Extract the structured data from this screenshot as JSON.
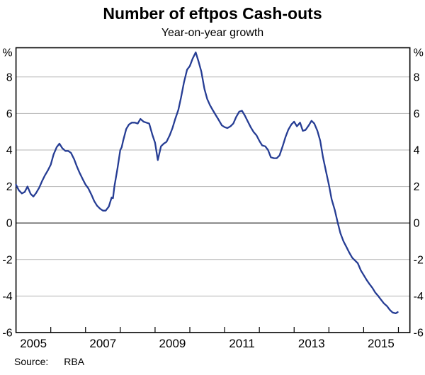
{
  "header": {
    "title": "Number of eftpos Cash-outs",
    "subtitle": "Year-on-year growth"
  },
  "footer": {
    "source_label": "Source:",
    "source_value": "RBA"
  },
  "chart_data": {
    "type": "line",
    "title": "Number of eftpos Cash-outs",
    "subtitle": "Year-on-year growth",
    "unit_label_left": "%",
    "unit_label_right": "%",
    "xlabel": "",
    "ylabel": "%",
    "x_range_years": [
      2005.0,
      2016.33
    ],
    "ylim": [
      -6,
      9.6
    ],
    "grid": true,
    "legend": "none",
    "colors": {
      "line": "#263D94",
      "gridline": "#b3b3b3",
      "zero_line": "#4d4d4d",
      "border": "#000000",
      "text": "#000000"
    },
    "yticks": [
      8,
      6,
      4,
      2,
      0,
      -2,
      -4,
      -6
    ],
    "gridline_values": [
      8,
      6,
      4,
      2,
      -2,
      -4
    ],
    "year_ticks": [
      2006,
      2007,
      2008,
      2009,
      2010,
      2011,
      2012,
      2013,
      2014,
      2015,
      2016
    ],
    "xtick_labels": [
      "2005",
      "2007",
      "2009",
      "2011",
      "2013",
      "2015"
    ],
    "xtick_label_positions": [
      2005.5,
      2007.5,
      2009.5,
      2011.5,
      2013.5,
      2015.5
    ],
    "series": [
      {
        "name": "eftpos cash-outs year-on-year growth (%)",
        "points": [
          [
            2005.0,
            2.1
          ],
          [
            2005.08,
            1.8
          ],
          [
            2005.17,
            1.62
          ],
          [
            2005.25,
            1.7
          ],
          [
            2005.33,
            2.0
          ],
          [
            2005.42,
            1.6
          ],
          [
            2005.5,
            1.45
          ],
          [
            2005.58,
            1.65
          ],
          [
            2005.67,
            1.95
          ],
          [
            2005.75,
            2.3
          ],
          [
            2005.83,
            2.6
          ],
          [
            2005.92,
            2.9
          ],
          [
            2006.0,
            3.2
          ],
          [
            2006.08,
            3.75
          ],
          [
            2006.17,
            4.15
          ],
          [
            2006.25,
            4.35
          ],
          [
            2006.33,
            4.1
          ],
          [
            2006.42,
            3.95
          ],
          [
            2006.5,
            3.95
          ],
          [
            2006.58,
            3.85
          ],
          [
            2006.67,
            3.5
          ],
          [
            2006.75,
            3.1
          ],
          [
            2006.83,
            2.75
          ],
          [
            2006.92,
            2.4
          ],
          [
            2007.0,
            2.1
          ],
          [
            2007.08,
            1.9
          ],
          [
            2007.17,
            1.55
          ],
          [
            2007.25,
            1.2
          ],
          [
            2007.33,
            0.95
          ],
          [
            2007.42,
            0.78
          ],
          [
            2007.5,
            0.68
          ],
          [
            2007.58,
            0.68
          ],
          [
            2007.67,
            0.9
          ],
          [
            2007.75,
            1.4
          ],
          [
            2007.79,
            1.36
          ],
          [
            2007.83,
            2.0
          ],
          [
            2007.92,
            3.0
          ],
          [
            2008.0,
            4.0
          ],
          [
            2008.04,
            4.15
          ],
          [
            2008.08,
            4.5
          ],
          [
            2008.17,
            5.15
          ],
          [
            2008.25,
            5.4
          ],
          [
            2008.33,
            5.5
          ],
          [
            2008.42,
            5.5
          ],
          [
            2008.5,
            5.45
          ],
          [
            2008.58,
            5.7
          ],
          [
            2008.67,
            5.55
          ],
          [
            2008.75,
            5.5
          ],
          [
            2008.83,
            5.45
          ],
          [
            2008.92,
            4.85
          ],
          [
            2009.0,
            4.4
          ],
          [
            2009.08,
            3.45
          ],
          [
            2009.17,
            4.2
          ],
          [
            2009.25,
            4.35
          ],
          [
            2009.33,
            4.45
          ],
          [
            2009.42,
            4.8
          ],
          [
            2009.5,
            5.2
          ],
          [
            2009.58,
            5.7
          ],
          [
            2009.67,
            6.2
          ],
          [
            2009.75,
            6.9
          ],
          [
            2009.83,
            7.7
          ],
          [
            2009.92,
            8.4
          ],
          [
            2010.0,
            8.6
          ],
          [
            2010.08,
            9.0
          ],
          [
            2010.17,
            9.35
          ],
          [
            2010.25,
            8.85
          ],
          [
            2010.33,
            8.3
          ],
          [
            2010.42,
            7.35
          ],
          [
            2010.5,
            6.8
          ],
          [
            2010.58,
            6.45
          ],
          [
            2010.67,
            6.15
          ],
          [
            2010.75,
            5.9
          ],
          [
            2010.83,
            5.65
          ],
          [
            2010.92,
            5.35
          ],
          [
            2011.0,
            5.25
          ],
          [
            2011.08,
            5.2
          ],
          [
            2011.17,
            5.3
          ],
          [
            2011.25,
            5.45
          ],
          [
            2011.33,
            5.8
          ],
          [
            2011.42,
            6.1
          ],
          [
            2011.5,
            6.15
          ],
          [
            2011.58,
            5.9
          ],
          [
            2011.67,
            5.55
          ],
          [
            2011.75,
            5.25
          ],
          [
            2011.83,
            5.0
          ],
          [
            2011.92,
            4.8
          ],
          [
            2012.0,
            4.5
          ],
          [
            2012.08,
            4.25
          ],
          [
            2012.17,
            4.2
          ],
          [
            2012.25,
            4.0
          ],
          [
            2012.33,
            3.6
          ],
          [
            2012.42,
            3.55
          ],
          [
            2012.5,
            3.55
          ],
          [
            2012.58,
            3.7
          ],
          [
            2012.67,
            4.2
          ],
          [
            2012.75,
            4.7
          ],
          [
            2012.83,
            5.1
          ],
          [
            2012.92,
            5.4
          ],
          [
            2013.0,
            5.55
          ],
          [
            2013.08,
            5.3
          ],
          [
            2013.17,
            5.5
          ],
          [
            2013.25,
            5.05
          ],
          [
            2013.33,
            5.1
          ],
          [
            2013.42,
            5.35
          ],
          [
            2013.5,
            5.6
          ],
          [
            2013.58,
            5.45
          ],
          [
            2013.67,
            5.05
          ],
          [
            2013.75,
            4.5
          ],
          [
            2013.83,
            3.6
          ],
          [
            2013.92,
            2.8
          ],
          [
            2014.0,
            2.1
          ],
          [
            2014.08,
            1.3
          ],
          [
            2014.17,
            0.7
          ],
          [
            2014.25,
            0.05
          ],
          [
            2014.33,
            -0.55
          ],
          [
            2014.42,
            -1.0
          ],
          [
            2014.5,
            -1.3
          ],
          [
            2014.58,
            -1.6
          ],
          [
            2014.67,
            -1.9
          ],
          [
            2014.75,
            -2.05
          ],
          [
            2014.83,
            -2.2
          ],
          [
            2014.92,
            -2.6
          ],
          [
            2015.0,
            -2.85
          ],
          [
            2015.08,
            -3.1
          ],
          [
            2015.17,
            -3.35
          ],
          [
            2015.25,
            -3.55
          ],
          [
            2015.33,
            -3.8
          ],
          [
            2015.42,
            -4.0
          ],
          [
            2015.5,
            -4.2
          ],
          [
            2015.58,
            -4.4
          ],
          [
            2015.67,
            -4.55
          ],
          [
            2015.75,
            -4.75
          ],
          [
            2015.83,
            -4.9
          ],
          [
            2015.92,
            -4.95
          ],
          [
            2015.98,
            -4.88
          ]
        ]
      }
    ]
  }
}
